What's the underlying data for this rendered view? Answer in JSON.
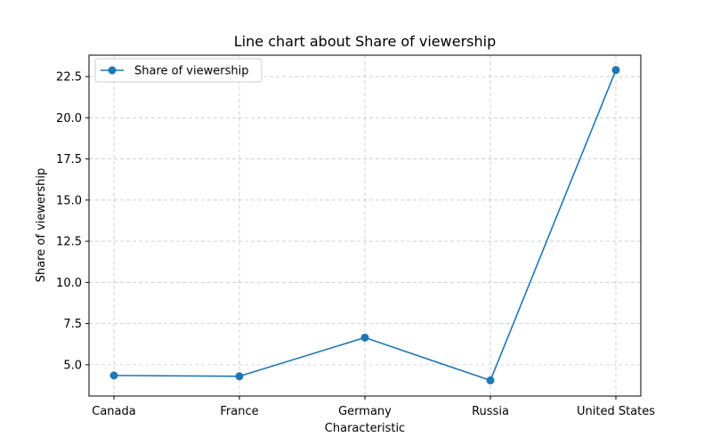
{
  "chart_data": {
    "type": "line",
    "title": "Line chart about Share of viewership",
    "xlabel": "Characteristic",
    "ylabel": "Share of viewership",
    "categories": [
      "Canada",
      "France",
      "Germany",
      "Russia",
      "United States"
    ],
    "series": [
      {
        "name": "Share of viewership",
        "values": [
          4.35,
          4.3,
          6.65,
          4.05,
          22.9
        ],
        "color": "#1f77b4",
        "marker": "circle"
      }
    ],
    "ylim": [
      3.1,
      23.8
    ],
    "yticks": [
      5.0,
      7.5,
      10.0,
      12.5,
      15.0,
      17.5,
      20.0,
      22.5
    ],
    "ytick_labels": [
      "5.0",
      "7.5",
      "10.0",
      "12.5",
      "15.0",
      "17.5",
      "20.0",
      "22.5"
    ],
    "grid": true,
    "legend_position": "top-left"
  }
}
